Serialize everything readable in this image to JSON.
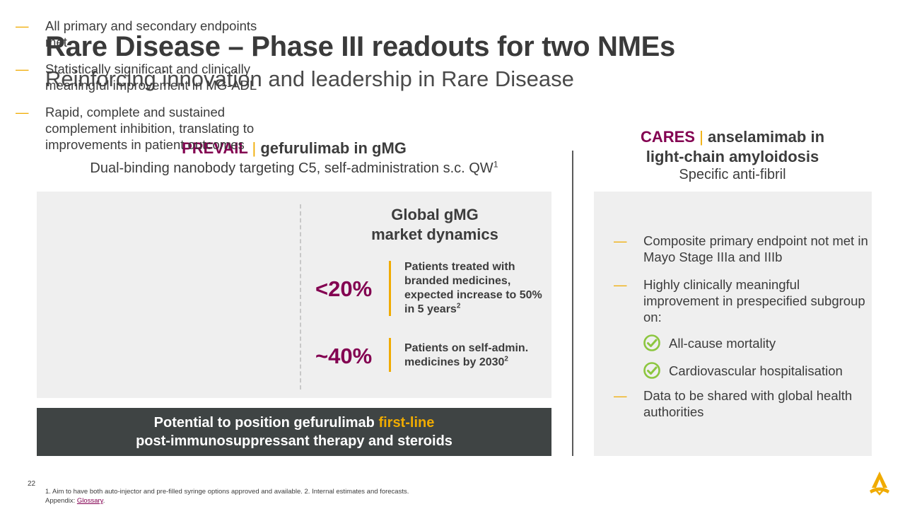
{
  "title": "Rare Disease – Phase III readouts for two NMEs",
  "subtitle": "Reinforcing innovation and leadership in Rare Disease",
  "left": {
    "trial": "PREVAIL",
    "separator": "|",
    "drug_indication": "gefurulimab in gMG",
    "description": "Dual-binding nanobody targeting C5, self-administration s.c. QW",
    "description_sup": "1",
    "bullets": [
      "All primary and secondary endpoints met",
      "Statistically significant and clinically meaningful improvement in MG-ADL",
      "Rapid, complete and sustained complement inhibition, translating to improvements in patient outcomes"
    ],
    "market": {
      "title_line1": "Global gMG",
      "title_line2": "market dynamics",
      "stats": [
        {
          "value": "<20%",
          "text": "Patients treated with branded medicines, expected increase to 50% in 5 years",
          "sup": "2"
        },
        {
          "value": "~40%",
          "text": "Patients on self-admin. medicines by 2030",
          "sup": "2"
        }
      ]
    },
    "banner": {
      "prefix": "Potential to position gefurulimab ",
      "highlight": "first-line",
      "line2": "post-immunosuppressant therapy and steroids"
    }
  },
  "right": {
    "trial": "CARES",
    "separator": "|",
    "drug_line1": "anselamimab in",
    "drug_line2": "light-chain amyloidosis",
    "description": "Specific anti-fibril",
    "bullets": [
      "Composite primary endpoint not met in Mayo Stage IIIa and IIIb",
      "Highly clinically meaningful improvement in prespecified subgroup on:"
    ],
    "subitems": [
      "All-cause mortality",
      "Cardiovascular hospitalisation"
    ],
    "last_bullet": "Data to be shared with global health authorities"
  },
  "bullet_marker": "—",
  "footer": {
    "page_number": "22",
    "footnote": "1. Aim to have both auto-injector and pre-filled syringe options approved and available. 2. Internal estimates and forecasts.",
    "appendix_label": "Appendix: ",
    "appendix_link": "Glossary",
    "appendix_end": "."
  },
  "colors": {
    "brand": "#830051",
    "accent": "#f0ab00",
    "check": "#8cc63f",
    "banner": "#3f4444"
  },
  "icons": [
    "check-circle-icon",
    "logo-icon"
  ]
}
